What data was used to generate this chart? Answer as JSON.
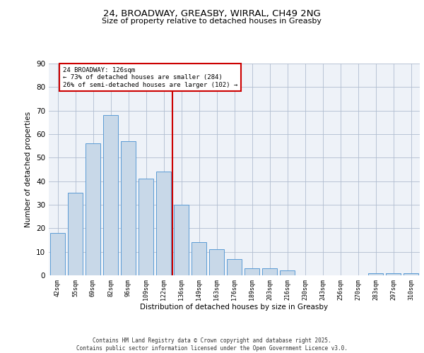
{
  "title1": "24, BROADWAY, GREASBY, WIRRAL, CH49 2NG",
  "title2": "Size of property relative to detached houses in Greasby",
  "xlabel": "Distribution of detached houses by size in Greasby",
  "ylabel": "Number of detached properties",
  "bar_color": "#c8d8e8",
  "bar_edge_color": "#5b9bd5",
  "background_color": "#eef2f8",
  "categories": [
    "42sqm",
    "55sqm",
    "69sqm",
    "82sqm",
    "96sqm",
    "109sqm",
    "122sqm",
    "136sqm",
    "149sqm",
    "163sqm",
    "176sqm",
    "189sqm",
    "203sqm",
    "216sqm",
    "230sqm",
    "243sqm",
    "256sqm",
    "270sqm",
    "283sqm",
    "297sqm",
    "310sqm"
  ],
  "values": [
    18,
    35,
    56,
    68,
    57,
    41,
    44,
    30,
    14,
    11,
    7,
    3,
    3,
    2,
    0,
    0,
    0,
    0,
    1,
    1,
    1
  ],
  "vline_x": 6.5,
  "vline_color": "#cc0000",
  "annotation_text": "24 BROADWAY: 126sqm\n← 73% of detached houses are smaller (284)\n26% of semi-detached houses are larger (102) →",
  "annotation_box_color": "#cc0000",
  "ylim": [
    0,
    90
  ],
  "yticks": [
    0,
    10,
    20,
    30,
    40,
    50,
    60,
    70,
    80,
    90
  ],
  "footer_text": "Contains HM Land Registry data © Crown copyright and database right 2025.\nContains public sector information licensed under the Open Government Licence v3.0.",
  "grid_color": "#b0bdd0"
}
